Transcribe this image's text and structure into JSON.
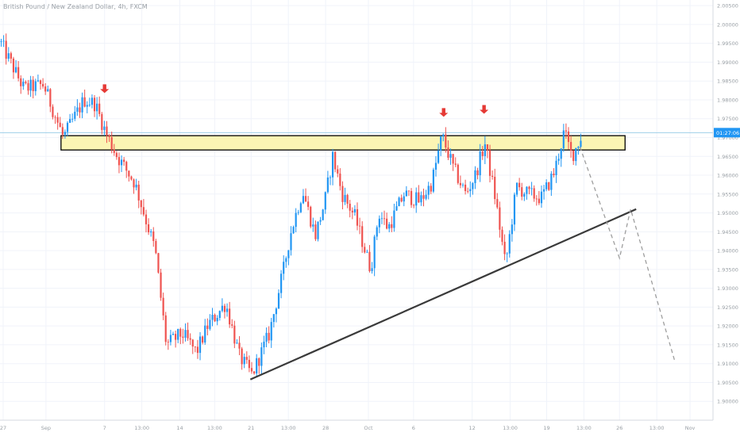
{
  "chart_data": {
    "type": "candlestick",
    "title": "British Pound / New Zealand Dollar, 4h, FXCM",
    "colors": {
      "up": "#2196f3",
      "down": "#ef5350",
      "zone_fill": "#fbf5b4",
      "zone_border": "#000000",
      "trendline": "#3a3a3a",
      "projection": "#9e9e9e",
      "arrow": "#e53935",
      "grid": "#f0f3fa",
      "price_line": "#9ecfe8",
      "current_label_bg": "#2196f3"
    },
    "y_axis": {
      "ylim": [
        1.895,
        2.0065
      ],
      "ticks": [
        "2.00500",
        "2.00000",
        "1.99500",
        "1.99000",
        "1.98500",
        "1.98000",
        "1.97500",
        "1.97000",
        "1.96500",
        "1.96000",
        "1.95500",
        "1.95000",
        "1.94500",
        "1.94000",
        "1.93500",
        "1.93000",
        "1.92500",
        "1.92000",
        "1.91500",
        "1.91000",
        "1.90500",
        "1.90000"
      ],
      "tick_values": [
        2.005,
        2.0,
        1.995,
        1.99,
        1.985,
        1.98,
        1.975,
        1.97,
        1.965,
        1.96,
        1.955,
        1.95,
        1.945,
        1.94,
        1.935,
        1.93,
        1.925,
        1.92,
        1.915,
        1.91,
        1.905,
        1.9
      ],
      "current_price": 1.9713,
      "current_label": "01:27:06"
    },
    "x_axis": {
      "xlim": [
        0,
        900
      ],
      "tick_labels": [
        "27",
        "Sep",
        "7",
        "13:00",
        "14",
        "13:00",
        "21",
        "13:00",
        "28",
        "Oct",
        "6",
        "12",
        "13:00",
        "19",
        "13:00",
        "26",
        "13:00",
        "Nov"
      ],
      "tick_positions": [
        4,
        58,
        132,
        179,
        227,
        271,
        317,
        364,
        411,
        465,
        522,
        596,
        644,
        690,
        737,
        782,
        829,
        871
      ]
    },
    "resistance_zone": {
      "x": [
        77,
        789
      ],
      "y_high": 1.9705,
      "y_low": 1.9667
    },
    "trendline": {
      "x": [
        316,
        803
      ],
      "y": [
        1.9058,
        1.951
      ]
    },
    "projection_path": {
      "x": [
        732,
        782,
        796,
        852
      ],
      "y": [
        1.9675,
        1.938,
        1.951,
        1.9105
      ]
    },
    "arrows": {
      "x": [
        132,
        560,
        611
      ],
      "y": [
        1.9818,
        1.9755,
        1.9763
      ]
    },
    "swings": [
      {
        "x": 0,
        "y": 1.9955
      },
      {
        "x": 30,
        "y": 1.983
      },
      {
        "x": 55,
        "y": 1.984
      },
      {
        "x": 80,
        "y": 1.97
      },
      {
        "x": 106,
        "y": 1.98
      },
      {
        "x": 120,
        "y": 1.979
      },
      {
        "x": 134,
        "y": 1.971
      },
      {
        "x": 148,
        "y": 1.965
      },
      {
        "x": 170,
        "y": 1.958
      },
      {
        "x": 196,
        "y": 1.94
      },
      {
        "x": 210,
        "y": 1.915
      },
      {
        "x": 230,
        "y": 1.918
      },
      {
        "x": 248,
        "y": 1.913
      },
      {
        "x": 262,
        "y": 1.92
      },
      {
        "x": 285,
        "y": 1.926
      },
      {
        "x": 302,
        "y": 1.912
      },
      {
        "x": 318,
        "y": 1.907
      },
      {
        "x": 340,
        "y": 1.918
      },
      {
        "x": 358,
        "y": 1.935
      },
      {
        "x": 366,
        "y": 1.944
      },
      {
        "x": 382,
        "y": 1.956
      },
      {
        "x": 398,
        "y": 1.944
      },
      {
        "x": 410,
        "y": 1.953
      },
      {
        "x": 420,
        "y": 1.965
      },
      {
        "x": 432,
        "y": 1.955
      },
      {
        "x": 448,
        "y": 1.949
      },
      {
        "x": 468,
        "y": 1.935
      },
      {
        "x": 478,
        "y": 1.95
      },
      {
        "x": 490,
        "y": 1.946
      },
      {
        "x": 510,
        "y": 1.955
      },
      {
        "x": 530,
        "y": 1.953
      },
      {
        "x": 545,
        "y": 1.958
      },
      {
        "x": 558,
        "y": 1.9705
      },
      {
        "x": 572,
        "y": 1.962
      },
      {
        "x": 588,
        "y": 1.955
      },
      {
        "x": 600,
        "y": 1.96
      },
      {
        "x": 612,
        "y": 1.9685
      },
      {
        "x": 626,
        "y": 1.953
      },
      {
        "x": 638,
        "y": 1.936
      },
      {
        "x": 652,
        "y": 1.957
      },
      {
        "x": 666,
        "y": 1.955
      },
      {
        "x": 684,
        "y": 1.954
      },
      {
        "x": 700,
        "y": 1.961
      },
      {
        "x": 712,
        "y": 1.9715
      },
      {
        "x": 722,
        "y": 1.965
      },
      {
        "x": 734,
        "y": 1.9705
      }
    ]
  }
}
